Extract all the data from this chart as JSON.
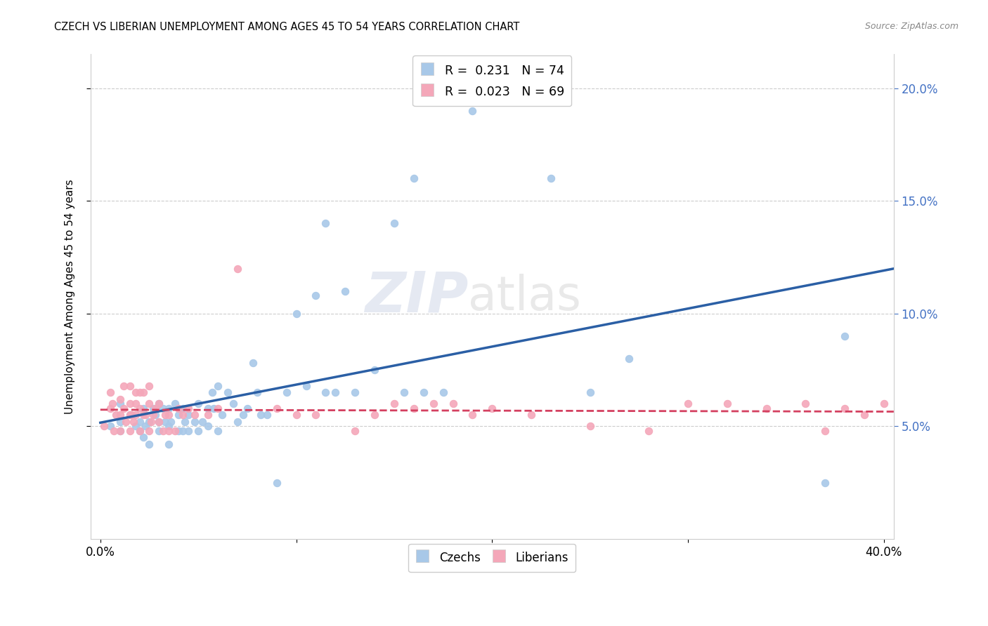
{
  "title": "CZECH VS LIBERIAN UNEMPLOYMENT AMONG AGES 45 TO 54 YEARS CORRELATION CHART",
  "source": "Source: ZipAtlas.com",
  "ylabel": "Unemployment Among Ages 45 to 54 years",
  "xlabel": "",
  "xlim": [
    -0.005,
    0.405
  ],
  "ylim": [
    0.0,
    0.215
  ],
  "xticks": [
    0.0,
    0.1,
    0.2,
    0.3,
    0.4
  ],
  "xticklabels": [
    "0.0%",
    "",
    "",
    "",
    "40.0%"
  ],
  "yticks_right": [
    0.05,
    0.1,
    0.15,
    0.2
  ],
  "yticklabels_right": [
    "5.0%",
    "10.0%",
    "15.0%",
    "20.0%"
  ],
  "legend_entry1": {
    "color": "#a8c8e8",
    "R": "0.231",
    "N": "74"
  },
  "legend_entry2": {
    "color": "#f4a7b9",
    "R": "0.023",
    "N": "69"
  },
  "czech_color": "#a8c8e8",
  "liberian_color": "#f4a7b9",
  "czech_line_color": "#2b5fa5",
  "liberian_line_color": "#d44060",
  "watermark_zip": "ZIP",
  "watermark_atlas": "atlas",
  "czech_x": [
    0.005,
    0.01,
    0.01,
    0.01,
    0.015,
    0.018,
    0.02,
    0.02,
    0.022,
    0.022,
    0.023,
    0.025,
    0.025,
    0.027,
    0.028,
    0.03,
    0.03,
    0.03,
    0.032,
    0.033,
    0.035,
    0.035,
    0.035,
    0.036,
    0.038,
    0.04,
    0.04,
    0.042,
    0.042,
    0.043,
    0.045,
    0.045,
    0.048,
    0.05,
    0.05,
    0.052,
    0.055,
    0.055,
    0.057,
    0.058,
    0.06,
    0.06,
    0.062,
    0.065,
    0.068,
    0.07,
    0.073,
    0.075,
    0.078,
    0.08,
    0.082,
    0.085,
    0.09,
    0.095,
    0.1,
    0.105,
    0.11,
    0.115,
    0.115,
    0.12,
    0.125,
    0.13,
    0.14,
    0.15,
    0.155,
    0.16,
    0.165,
    0.175,
    0.19,
    0.23,
    0.25,
    0.27,
    0.37,
    0.38
  ],
  "czech_y": [
    0.05,
    0.048,
    0.052,
    0.06,
    0.055,
    0.05,
    0.048,
    0.052,
    0.045,
    0.058,
    0.05,
    0.042,
    0.052,
    0.058,
    0.055,
    0.048,
    0.052,
    0.06,
    0.058,
    0.052,
    0.042,
    0.05,
    0.058,
    0.052,
    0.06,
    0.048,
    0.055,
    0.048,
    0.058,
    0.052,
    0.048,
    0.055,
    0.052,
    0.048,
    0.06,
    0.052,
    0.05,
    0.058,
    0.065,
    0.058,
    0.048,
    0.068,
    0.055,
    0.065,
    0.06,
    0.052,
    0.055,
    0.058,
    0.078,
    0.065,
    0.055,
    0.055,
    0.025,
    0.065,
    0.1,
    0.068,
    0.108,
    0.065,
    0.14,
    0.065,
    0.11,
    0.065,
    0.075,
    0.14,
    0.065,
    0.16,
    0.065,
    0.065,
    0.19,
    0.16,
    0.065,
    0.08,
    0.025,
    0.09
  ],
  "liberian_x": [
    0.002,
    0.005,
    0.005,
    0.006,
    0.007,
    0.008,
    0.01,
    0.01,
    0.01,
    0.012,
    0.012,
    0.013,
    0.015,
    0.015,
    0.015,
    0.015,
    0.016,
    0.017,
    0.018,
    0.018,
    0.018,
    0.02,
    0.02,
    0.02,
    0.022,
    0.022,
    0.023,
    0.025,
    0.025,
    0.025,
    0.026,
    0.027,
    0.028,
    0.03,
    0.03,
    0.032,
    0.033,
    0.035,
    0.035,
    0.038,
    0.04,
    0.042,
    0.045,
    0.048,
    0.055,
    0.06,
    0.07,
    0.09,
    0.1,
    0.11,
    0.13,
    0.14,
    0.15,
    0.16,
    0.17,
    0.18,
    0.19,
    0.2,
    0.22,
    0.25,
    0.28,
    0.3,
    0.32,
    0.34,
    0.36,
    0.37,
    0.38,
    0.39,
    0.4
  ],
  "liberian_y": [
    0.05,
    0.058,
    0.065,
    0.06,
    0.048,
    0.055,
    0.048,
    0.055,
    0.062,
    0.058,
    0.068,
    0.052,
    0.048,
    0.055,
    0.06,
    0.068,
    0.055,
    0.052,
    0.055,
    0.06,
    0.065,
    0.048,
    0.058,
    0.065,
    0.055,
    0.065,
    0.055,
    0.048,
    0.06,
    0.068,
    0.052,
    0.055,
    0.058,
    0.052,
    0.06,
    0.048,
    0.055,
    0.048,
    0.055,
    0.048,
    0.058,
    0.055,
    0.058,
    0.055,
    0.055,
    0.058,
    0.12,
    0.058,
    0.055,
    0.055,
    0.048,
    0.055,
    0.06,
    0.058,
    0.06,
    0.06,
    0.055,
    0.058,
    0.055,
    0.05,
    0.048,
    0.06,
    0.06,
    0.058,
    0.06,
    0.048,
    0.058,
    0.055,
    0.06
  ]
}
